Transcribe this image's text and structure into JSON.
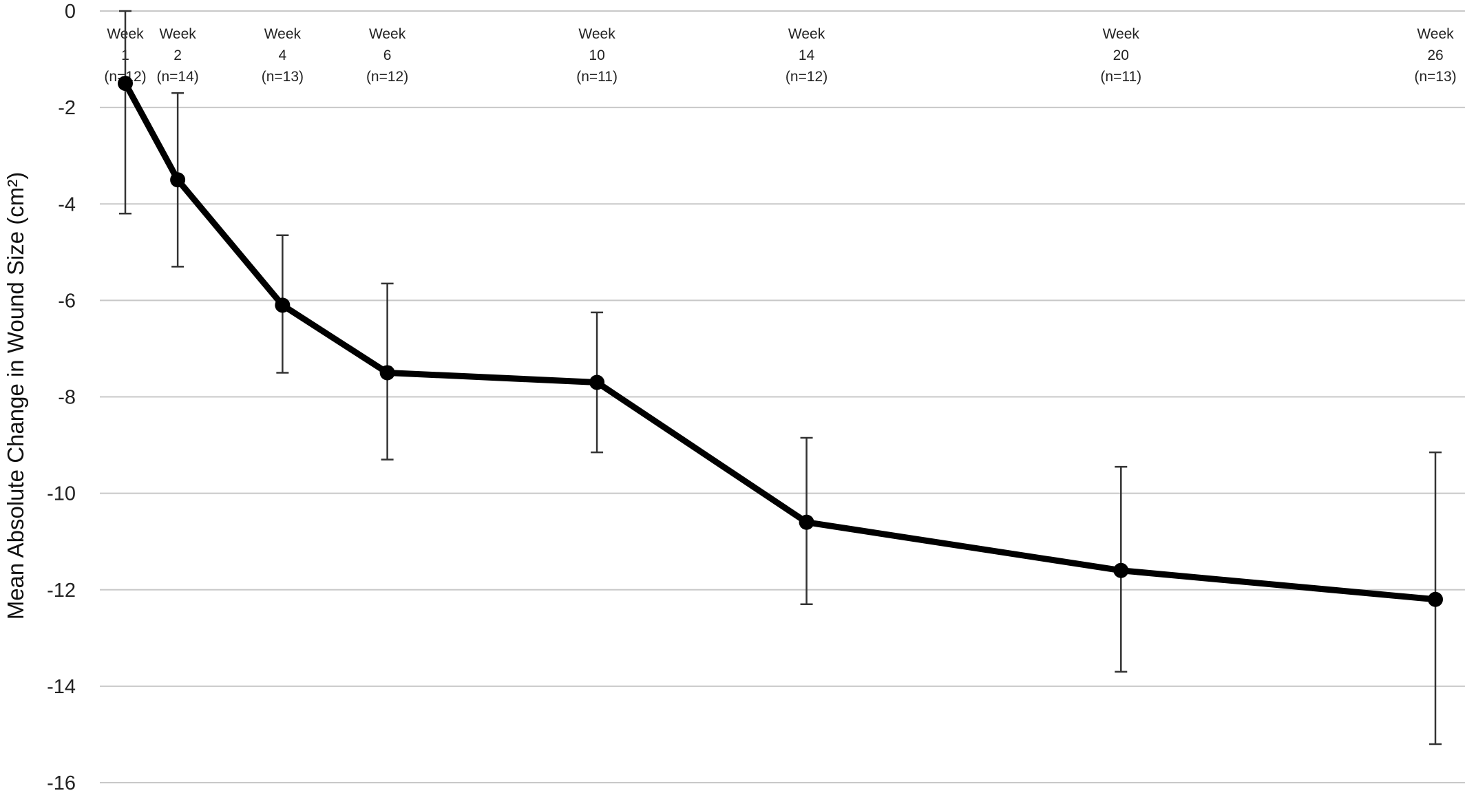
{
  "chart_data": {
    "type": "line",
    "title": "",
    "xlabel": "",
    "ylabel": "Mean Absolute Change in Wound Size (cm²)",
    "ylim": [
      -16,
      0
    ],
    "yticks": [
      0,
      -2,
      -4,
      -6,
      -8,
      -10,
      -12,
      -14,
      -16
    ],
    "x": [
      1,
      2,
      4,
      6,
      10,
      14,
      20,
      26
    ],
    "categories": [
      {
        "week": "Week",
        "num": "1",
        "n": "(n=12)"
      },
      {
        "week": "Week",
        "num": "2",
        "n": "(n=14)"
      },
      {
        "week": "Week",
        "num": "4",
        "n": "(n=13)"
      },
      {
        "week": "Week",
        "num": "6",
        "n": "(n=12)"
      },
      {
        "week": "Week",
        "num": "10",
        "n": "(n=11)"
      },
      {
        "week": "Week",
        "num": "14",
        "n": "(n=12)"
      },
      {
        "week": "Week",
        "num": "20",
        "n": "(n=11)"
      },
      {
        "week": "Week",
        "num": "26",
        "n": "(n=13)"
      }
    ],
    "series": [
      {
        "values": [
          -1.5,
          -3.5,
          -6.1,
          -7.5,
          -7.7,
          -10.6,
          -11.6,
          -12.2
        ],
        "error_low": [
          -4.2,
          -5.3,
          -7.5,
          -9.3,
          -9.15,
          -12.3,
          -13.7,
          -15.2
        ],
        "error_high": [
          0.0,
          -1.7,
          -4.65,
          -5.65,
          -6.25,
          -8.85,
          -9.45,
          -9.15
        ]
      }
    ],
    "grid": "horizontal",
    "line_color": "#000000",
    "grid_color": "#c8c8c8",
    "errorbar_color": "#333333"
  }
}
